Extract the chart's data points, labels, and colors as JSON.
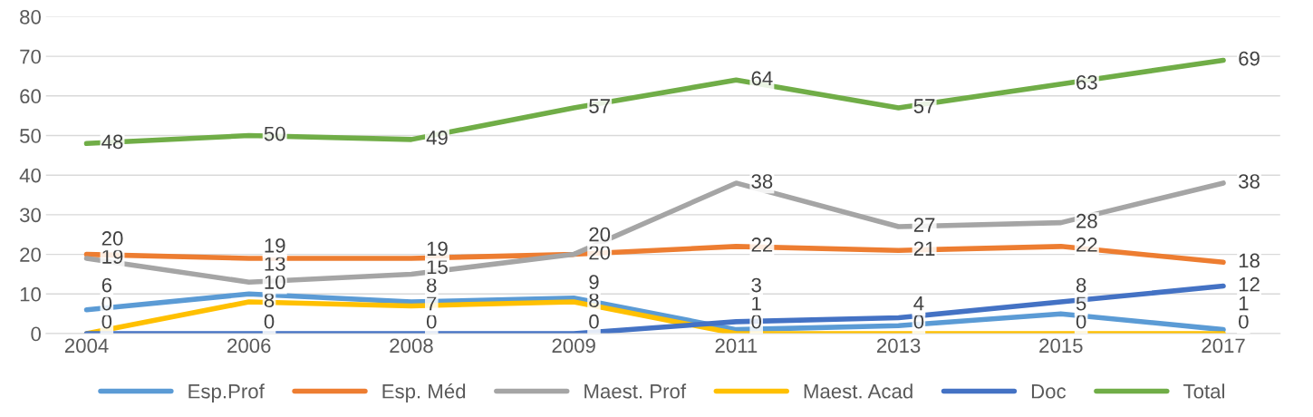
{
  "chart_data": {
    "type": "line",
    "categories": [
      "2004",
      "2006",
      "2008",
      "2009",
      "2011",
      "2013",
      "2015",
      "2017"
    ],
    "series": [
      {
        "name": "Esp.Prof",
        "color": "#5b9bd5",
        "values": [
          6,
          10,
          8,
          9,
          1,
          2,
          5,
          1
        ],
        "value_labels": [
          "6",
          "10",
          "8",
          "9",
          "1",
          null,
          "5",
          "1"
        ]
      },
      {
        "name": "Esp. Méd",
        "color": "#ed7d31",
        "values": [
          20,
          19,
          19,
          20,
          22,
          21,
          22,
          18
        ],
        "value_labels": [
          "20",
          "19",
          "19",
          "20",
          "22",
          "21",
          "22",
          "18"
        ]
      },
      {
        "name": "Maest. Prof",
        "color": "#a5a5a5",
        "values": [
          19,
          13,
          15,
          20,
          38,
          27,
          28,
          38
        ],
        "value_labels": [
          "19",
          "13",
          "15",
          "20",
          "38",
          "27",
          "28",
          "38"
        ]
      },
      {
        "name": "Maest. Acad",
        "color": "#ffc000",
        "values": [
          0,
          8,
          7,
          8,
          0,
          0,
          0,
          0
        ],
        "value_labels": [
          "0",
          "8",
          "7",
          "8",
          "0",
          "0",
          "0",
          "0"
        ]
      },
      {
        "name": "Doc",
        "color": "#4472c4",
        "values": [
          0,
          0,
          0,
          0,
          3,
          4,
          8,
          12
        ],
        "value_labels": [
          "0",
          "0",
          "0",
          "0",
          "3",
          "4",
          "8",
          "12"
        ]
      },
      {
        "name": "Total",
        "color": "#70ad47",
        "values": [
          48,
          50,
          49,
          57,
          64,
          57,
          63,
          69
        ],
        "value_labels": [
          "48",
          "50",
          "49",
          "57",
          "64",
          "57",
          "63",
          "69"
        ]
      }
    ],
    "ylim": [
      0,
      80
    ],
    "yticks": [
      0,
      10,
      20,
      30,
      40,
      50,
      60,
      70,
      80
    ],
    "grid": "y",
    "legend": "bottom",
    "marker": "none",
    "line_style": "solid"
  }
}
